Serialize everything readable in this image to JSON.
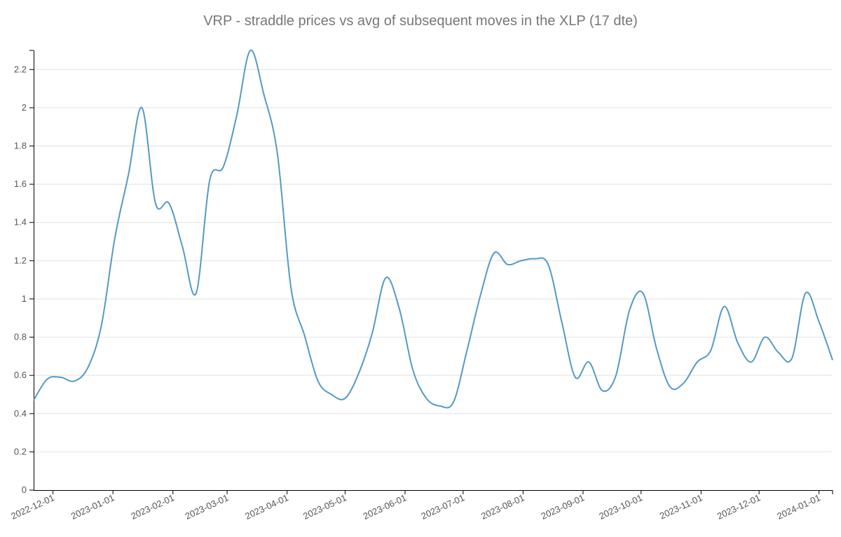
{
  "chart_data": {
    "type": "line",
    "title": "VRP - straddle prices vs avg of subsequent moves in the XLP (17 dte)",
    "xlabel": "",
    "ylabel": "",
    "ylim": [
      0,
      2.3
    ],
    "xlim": [
      "2022-11-21",
      "2024-01-08"
    ],
    "grid": true,
    "legend": "none",
    "y_ticks": [
      "0",
      "0.2",
      "0.4",
      "0.6",
      "0.8",
      "1",
      "1.2",
      "1.4",
      "1.6",
      "1.8",
      "2",
      "2.2"
    ],
    "x_ticks": [
      "2022-12-01",
      "2023-01-01",
      "2023-02-01",
      "2023-03-01",
      "2023-04-01",
      "2023-05-01",
      "2023-06-01",
      "2023-07-01",
      "2023-08-01",
      "2023-09-01",
      "2023-10-01",
      "2023-11-01",
      "2023-12-01",
      "2024-01-01"
    ],
    "series": [
      {
        "name": "VRP",
        "color": "#5499c7",
        "x": [
          "2022-11-21",
          "2022-11-28",
          "2022-12-05",
          "2022-12-12",
          "2022-12-19",
          "2022-12-26",
          "2023-01-02",
          "2023-01-09",
          "2023-01-16",
          "2023-01-23",
          "2023-01-30",
          "2023-02-06",
          "2023-02-13",
          "2023-02-20",
          "2023-02-27",
          "2023-03-06",
          "2023-03-13",
          "2023-03-20",
          "2023-03-27",
          "2023-04-03",
          "2023-04-10",
          "2023-04-17",
          "2023-04-24",
          "2023-05-01",
          "2023-05-08",
          "2023-05-15",
          "2023-05-22",
          "2023-05-29",
          "2023-06-05",
          "2023-06-12",
          "2023-06-19",
          "2023-06-26",
          "2023-07-03",
          "2023-07-10",
          "2023-07-17",
          "2023-07-24",
          "2023-07-31",
          "2023-08-07",
          "2023-08-14",
          "2023-08-21",
          "2023-08-28",
          "2023-09-04",
          "2023-09-11",
          "2023-09-18",
          "2023-09-25",
          "2023-10-02",
          "2023-10-09",
          "2023-10-16",
          "2023-10-23",
          "2023-10-30",
          "2023-11-06",
          "2023-11-13",
          "2023-11-20",
          "2023-11-27",
          "2023-12-04",
          "2023-12-11",
          "2023-12-18",
          "2023-12-25",
          "2024-01-01",
          "2024-01-08"
        ],
        "values": [
          0.47,
          0.58,
          0.59,
          0.57,
          0.64,
          0.86,
          1.32,
          1.65,
          2.0,
          1.5,
          1.5,
          1.27,
          1.03,
          1.62,
          1.69,
          1.96,
          2.3,
          2.07,
          1.76,
          1.06,
          0.81,
          0.57,
          0.5,
          0.48,
          0.61,
          0.82,
          1.11,
          0.95,
          0.63,
          0.48,
          0.44,
          0.46,
          0.73,
          1.02,
          1.24,
          1.18,
          1.2,
          1.21,
          1.18,
          0.88,
          0.59,
          0.67,
          0.52,
          0.6,
          0.94,
          1.03,
          0.74,
          0.54,
          0.56,
          0.67,
          0.73,
          0.96,
          0.77,
          0.67,
          0.8,
          0.72,
          0.69,
          1.03,
          0.88,
          0.68
        ]
      }
    ]
  }
}
